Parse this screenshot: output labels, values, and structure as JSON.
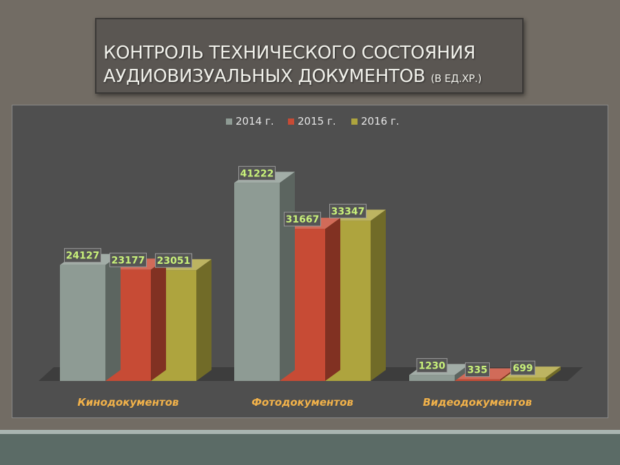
{
  "title": {
    "line1": "КОНТРОЛЬ ТЕХНИЧЕСКОГО СОСТОЯНИЯ",
    "line2": "АУДИОВИЗУАЛЬНЫХ ДОКУМЕНТОВ",
    "unit": "(В ЕД.ХР.)"
  },
  "chart_data": {
    "type": "bar",
    "title": "КОНТРОЛЬ ТЕХНИЧЕСКОГО СОСТОЯНИЯ АУДИОВИЗУАЛЬНЫХ ДОКУМЕНТОВ (В ЕД.ХР.)",
    "categories": [
      "Кинодокументов",
      "Фотодокументов",
      "Видеодокументов"
    ],
    "series": [
      {
        "name": "2014 г.",
        "values": [
          24127,
          41222,
          1230
        ],
        "color": "#8e9b94"
      },
      {
        "name": "2015 г.",
        "values": [
          23177,
          31667,
          335
        ],
        "color": "#c74b35"
      },
      {
        "name": "2016 г.",
        "values": [
          23051,
          33347,
          699
        ],
        "color": "#aea43e"
      }
    ],
    "xlabel": "",
    "ylabel": "",
    "ylim": [
      0,
      42000
    ],
    "grid": false,
    "legend_position": "top",
    "three_d": true,
    "data_labels": true,
    "label_color": "#c8f07a"
  }
}
